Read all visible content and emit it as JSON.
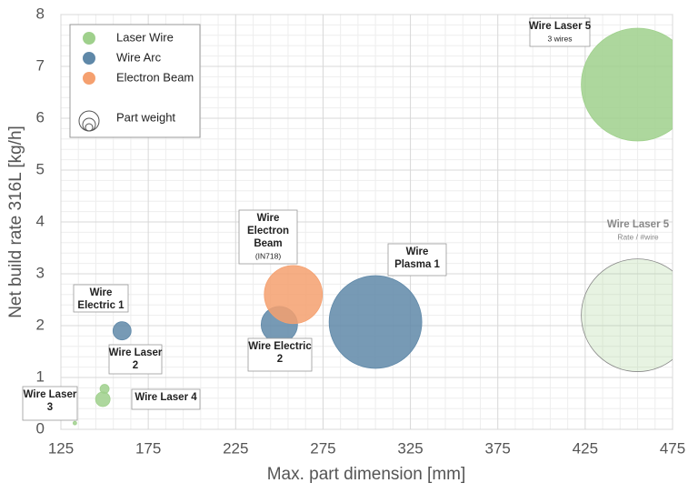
{
  "chart_data": {
    "type": "bubble",
    "xlabel": "Max. part dimension [mm]",
    "ylabel": "Net build rate 316L [kg/h]",
    "xlim": [
      125,
      475
    ],
    "ylim": [
      0,
      8
    ],
    "xticks": [
      125,
      175,
      225,
      275,
      325,
      375,
      425,
      475
    ],
    "yticks": [
      0,
      1,
      2,
      3,
      4,
      5,
      6,
      7,
      8
    ],
    "xminorticks": [
      135,
      145,
      155,
      165,
      185,
      195,
      205,
      215,
      235,
      245,
      255,
      265,
      285,
      295,
      305,
      315,
      335,
      345,
      355,
      365,
      385,
      395,
      405,
      415,
      435,
      445,
      455,
      465
    ],
    "yminorticks": [
      0.2,
      0.4,
      0.6,
      0.8,
      1.2,
      1.4,
      1.6,
      1.8,
      2.2,
      2.4,
      2.6,
      2.8,
      3.2,
      3.4,
      3.6,
      3.8,
      4.2,
      4.4,
      4.6,
      4.8,
      5.2,
      5.4,
      5.6,
      5.8,
      6.2,
      6.4,
      6.6,
      6.8,
      7.2,
      7.4,
      7.6,
      7.8
    ],
    "grid": true,
    "legend": "upper left",
    "size_legend": "Part weight",
    "series": [
      {
        "name": "Laser Wire",
        "color": "#9fd08c",
        "x": [
          455,
          150,
          149,
          133,
          455
        ],
        "values": [
          6.65,
          0.78,
          0.58,
          0.12,
          2.2
        ],
        "sizes": [
          384,
          2.5,
          6.4,
          0.4,
          384
        ],
        "faded": [
          false,
          false,
          false,
          false,
          true
        ],
        "labels": [
          [
            "Wire Laser 5",
            "3 wires"
          ],
          [
            "Wire Laser",
            "2"
          ],
          [
            "Wire Laser 4"
          ],
          [
            "Wire Laser",
            "3"
          ],
          [
            "Wire Laser 5",
            "Rate / #wire"
          ]
        ]
      },
      {
        "name": "Wire Arc",
        "color": "#5f88a8",
        "x": [
          160,
          250,
          305
        ],
        "values": [
          1.9,
          2.02,
          2.07
        ],
        "sizes": [
          10,
          40,
          260
        ],
        "faded": [
          false,
          false,
          false
        ],
        "labels": [
          [
            "Wire",
            "Electric 1"
          ],
          [
            "Wire Electric",
            "2"
          ],
          [
            "Wire",
            "Plasma 1"
          ]
        ]
      },
      {
        "name": "Electron Beam",
        "color": "#f5a06f",
        "x": [
          258
        ],
        "values": [
          2.6
        ],
        "sizes": [
          102
        ],
        "faded": [
          false
        ],
        "labels": [
          [
            "Wire",
            "Electron",
            "Beam",
            "(IN718)"
          ]
        ]
      }
    ]
  }
}
